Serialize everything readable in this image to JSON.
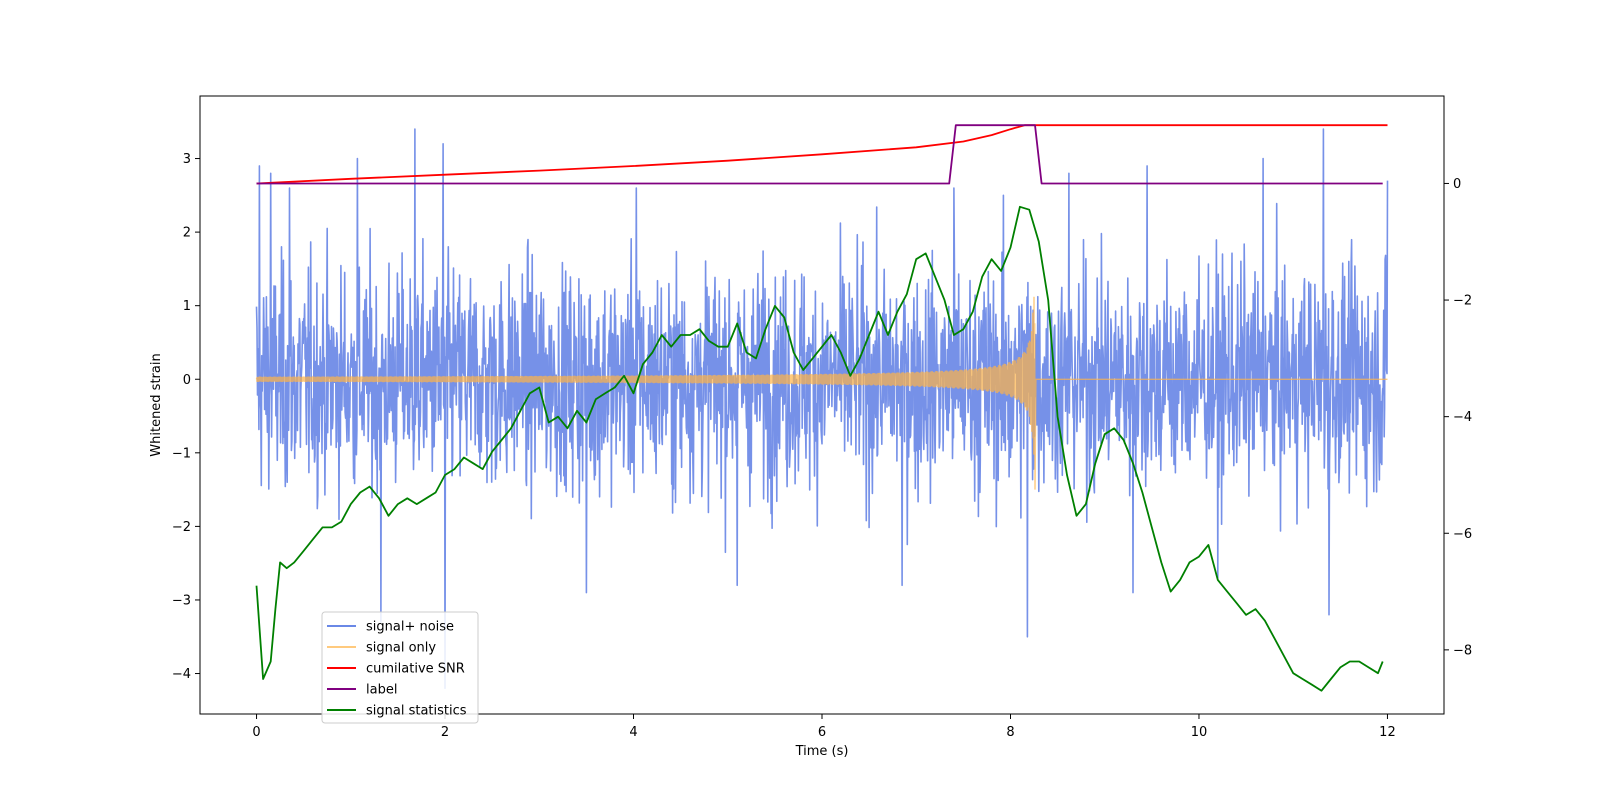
{
  "chart_data": {
    "type": "line",
    "xlabel": "Time (s)",
    "ylabel": "Whitened strain",
    "xlim": [
      -0.6,
      12.6
    ],
    "ylim": [
      -4.55,
      3.85
    ],
    "y2lim": [
      -9.1,
      1.5
    ],
    "xticks": [
      0,
      2,
      4,
      6,
      8,
      10,
      12
    ],
    "yticks": [
      -4,
      -3,
      -2,
      -1,
      0,
      1,
      2,
      3
    ],
    "y2ticks": [
      -8,
      -6,
      -4,
      -2,
      0
    ],
    "series": [
      {
        "name": "signal+ noise",
        "axis": "left",
        "color": "#6a88e6",
        "style": "noise",
        "t_start": 0,
        "t_end": 12,
        "std": 0.75,
        "spikes": [
          [
            0.03,
            2.9
          ],
          [
            0.15,
            2.8
          ],
          [
            1.07,
            3.0
          ],
          [
            1.32,
            -3.3
          ],
          [
            1.68,
            3.4
          ],
          [
            1.98,
            3.2
          ],
          [
            2.0,
            -4.2
          ],
          [
            3.5,
            -2.9
          ],
          [
            4.03,
            2.6
          ],
          [
            7.4,
            2.6
          ],
          [
            8.18,
            -3.5
          ],
          [
            8.62,
            2.8
          ],
          [
            9.3,
            -2.9
          ],
          [
            9.45,
            2.9
          ],
          [
            10.68,
            3.0
          ],
          [
            11.32,
            3.4
          ],
          [
            11.38,
            -3.2
          ],
          [
            12.0,
            2.7
          ],
          [
            0.35,
            2.6
          ],
          [
            5.1,
            -2.8
          ],
          [
            6.85,
            -2.8
          ],
          [
            10.2,
            -2.7
          ]
        ]
      },
      {
        "name": "signal only",
        "axis": "left",
        "color": "#ffb347",
        "style": "chirp",
        "t_start": 0,
        "t_merge": 8.26,
        "t_end": 12,
        "peak": 1.15
      },
      {
        "name": "cumilative SNR",
        "axis": "right",
        "color": "#ff0000",
        "x": [
          0,
          1,
          2,
          3,
          4,
          5,
          6,
          7,
          7.5,
          7.8,
          8.0,
          8.15,
          8.26,
          8.27,
          12
        ],
        "y": [
          0.0,
          0.08,
          0.15,
          0.22,
          0.3,
          0.39,
          0.5,
          0.62,
          0.72,
          0.83,
          0.93,
          1.0,
          1.0,
          1.0,
          1.0
        ]
      },
      {
        "name": "label",
        "axis": "right",
        "color": "#800080",
        "x": [
          0,
          7.35,
          7.42,
          8.26,
          8.33,
          11.95
        ],
        "y": [
          0,
          0,
          1,
          1,
          0,
          0
        ]
      },
      {
        "name": "signal statistics",
        "axis": "right",
        "color": "#008000",
        "x": [
          0,
          0.07,
          0.15,
          0.2,
          0.25,
          0.32,
          0.4,
          0.5,
          0.6,
          0.7,
          0.8,
          0.9,
          1.0,
          1.1,
          1.2,
          1.3,
          1.4,
          1.5,
          1.6,
          1.7,
          1.8,
          1.9,
          2.0,
          2.1,
          2.2,
          2.3,
          2.4,
          2.5,
          2.6,
          2.7,
          2.8,
          2.9,
          3.0,
          3.1,
          3.2,
          3.3,
          3.4,
          3.5,
          3.6,
          3.7,
          3.8,
          3.9,
          4.0,
          4.1,
          4.2,
          4.3,
          4.4,
          4.5,
          4.6,
          4.7,
          4.8,
          4.9,
          5.0,
          5.1,
          5.2,
          5.3,
          5.4,
          5.5,
          5.6,
          5.7,
          5.8,
          5.9,
          6.0,
          6.1,
          6.2,
          6.3,
          6.4,
          6.5,
          6.6,
          6.7,
          6.8,
          6.9,
          7.0,
          7.1,
          7.2,
          7.3,
          7.4,
          7.5,
          7.6,
          7.7,
          7.8,
          7.9,
          8.0,
          8.1,
          8.2,
          8.3,
          8.4,
          8.5,
          8.6,
          8.7,
          8.8,
          8.9,
          9.0,
          9.1,
          9.2,
          9.3,
          9.4,
          9.5,
          9.6,
          9.7,
          9.8,
          9.9,
          10.0,
          10.1,
          10.2,
          10.3,
          10.4,
          10.5,
          10.6,
          10.7,
          10.8,
          10.9,
          11.0,
          11.1,
          11.2,
          11.3,
          11.4,
          11.5,
          11.6,
          11.7,
          11.8,
          11.9,
          11.95
        ],
        "y": [
          -6.9,
          -8.5,
          -8.2,
          -7.3,
          -6.5,
          -6.6,
          -6.5,
          -6.3,
          -6.1,
          -5.9,
          -5.9,
          -5.8,
          -5.5,
          -5.3,
          -5.2,
          -5.4,
          -5.7,
          -5.5,
          -5.4,
          -5.5,
          -5.4,
          -5.3,
          -5.0,
          -4.9,
          -4.7,
          -4.8,
          -4.9,
          -4.6,
          -4.4,
          -4.2,
          -3.9,
          -3.6,
          -3.5,
          -4.1,
          -4.0,
          -4.2,
          -3.9,
          -4.1,
          -3.7,
          -3.6,
          -3.5,
          -3.3,
          -3.6,
          -3.1,
          -2.9,
          -2.6,
          -2.8,
          -2.6,
          -2.6,
          -2.5,
          -2.7,
          -2.8,
          -2.8,
          -2.4,
          -2.9,
          -3.0,
          -2.5,
          -2.1,
          -2.3,
          -2.9,
          -3.2,
          -3.0,
          -2.8,
          -2.6,
          -2.9,
          -3.3,
          -3.0,
          -2.6,
          -2.2,
          -2.6,
          -2.2,
          -1.9,
          -1.3,
          -1.2,
          -1.6,
          -2.0,
          -2.6,
          -2.5,
          -2.2,
          -1.6,
          -1.3,
          -1.5,
          -1.1,
          -0.4,
          -0.45,
          -1.0,
          -2.0,
          -4.0,
          -5.0,
          -5.7,
          -5.5,
          -4.8,
          -4.3,
          -4.2,
          -4.4,
          -4.8,
          -5.3,
          -5.9,
          -6.5,
          -7.0,
          -6.8,
          -6.5,
          -6.4,
          -6.2,
          -6.8,
          -7.0,
          -7.2,
          -7.4,
          -7.3,
          -7.5,
          -7.8,
          -8.1,
          -8.4,
          -8.5,
          -8.6,
          -8.7,
          -8.5,
          -8.3,
          -8.2,
          -8.2,
          -8.3,
          -8.4,
          -8.2
        ]
      }
    ],
    "legend": [
      "signal+ noise",
      "signal only",
      "cumilative SNR",
      "label",
      "signal statistics"
    ],
    "legend_placement": "lower-left"
  }
}
